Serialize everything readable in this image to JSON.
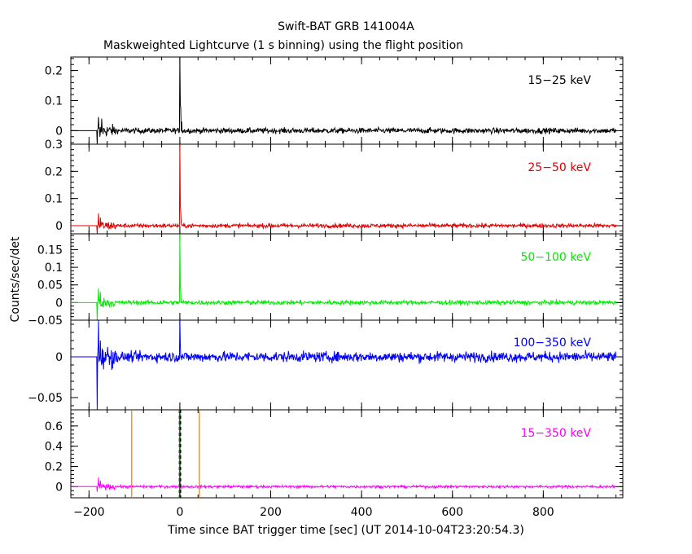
{
  "chart_data": {
    "type": "line",
    "title": "Swift-BAT GRB 141004A",
    "subtitle": "Maskweighted Lightcurve (1 s binning) using the flight position",
    "xlabel": "Time since BAT trigger time [sec] (UT 2014-10-04T23:20:54.3)",
    "ylabel": "Counts/sec/det",
    "xlim": [
      -240,
      975
    ],
    "x_ticks": [
      -200,
      0,
      200,
      400,
      600,
      800
    ],
    "x_tick_labels": [
      "−200",
      "0",
      "200",
      "400",
      "600",
      "800"
    ],
    "data_range": [
      -240,
      960
    ],
    "panels": [
      {
        "name": "15−25 keV",
        "color": "#000000",
        "ylim": [
          -0.045,
          0.245
        ],
        "y_ticks": [
          0,
          0.1,
          0.2
        ],
        "y_tick_labels": [
          "0",
          "0.1",
          "0.2"
        ],
        "noise": 0.0065,
        "data_start": -180,
        "features": [
          {
            "x": -182,
            "y": -0.045
          },
          {
            "x": -179,
            "y": 0.045
          },
          {
            "x": -176,
            "y": -0.02
          },
          {
            "x": -172,
            "y": 0.04
          },
          {
            "x": 0,
            "y": 0.245
          },
          {
            "x": 1,
            "y": 0.085
          },
          {
            "x": 2,
            "y": 0.075
          },
          {
            "x": 4,
            "y": 0.03
          }
        ]
      },
      {
        "name": "25−50 keV",
        "color": "#e00000",
        "ylim": [
          -0.03,
          0.3
        ],
        "y_ticks": [
          0,
          0.1,
          0.2,
          0.3
        ],
        "y_tick_labels": [
          "0",
          "0.1",
          "0.2",
          "0.3"
        ],
        "noise": 0.0055,
        "data_start": -180,
        "features": [
          {
            "x": -182,
            "y": -0.03
          },
          {
            "x": -179,
            "y": 0.045
          },
          {
            "x": -175,
            "y": 0.03
          },
          {
            "x": 0,
            "y": 0.3
          },
          {
            "x": 1,
            "y": 0.075
          },
          {
            "x": 2,
            "y": 0.05
          }
        ]
      },
      {
        "name": "50−100 keV",
        "color": "#00ee00",
        "ylim": [
          -0.05,
          0.195
        ],
        "y_ticks": [
          -0.05,
          0,
          0.05,
          0.1,
          0.15
        ],
        "y_tick_labels": [
          "−0.05",
          "0",
          "0.05",
          "0.1",
          "0.15"
        ],
        "noise": 0.0045,
        "data_start": -180,
        "features": [
          {
            "x": -182,
            "y": -0.05
          },
          {
            "x": -179,
            "y": 0.04
          },
          {
            "x": -175,
            "y": 0.03
          },
          {
            "x": 0,
            "y": 0.195
          },
          {
            "x": 1,
            "y": 0.045
          },
          {
            "x": 2,
            "y": 0.03
          }
        ]
      },
      {
        "name": "100−350 keV",
        "color": "#0000ff",
        "ylim": [
          -0.065,
          0.045
        ],
        "y_ticks": [
          -0.05,
          0
        ],
        "y_tick_labels": [
          "−0.05",
          "0"
        ],
        "noise": 0.0045,
        "data_start": -180,
        "features": [
          {
            "x": -182,
            "y": -0.065
          },
          {
            "x": -179,
            "y": 0.045
          },
          {
            "x": -175,
            "y": 0.02
          },
          {
            "x": 0,
            "y": 0.045
          },
          {
            "x": 1,
            "y": 0.015
          }
        ]
      },
      {
        "name": "15−350 keV",
        "color": "#ff00ff",
        "ylim": [
          -0.11,
          0.76
        ],
        "y_ticks": [
          0,
          0.2,
          0.4,
          0.6
        ],
        "y_tick_labels": [
          "0",
          "0.2",
          "0.4",
          "0.6"
        ],
        "noise": 0.009,
        "data_start": -180,
        "features": [
          {
            "x": -182,
            "y": -0.05
          },
          {
            "x": -179,
            "y": 0.09
          },
          {
            "x": -175,
            "y": 0.06
          },
          {
            "x": 0,
            "y": 0.06
          }
        ],
        "markers": [
          {
            "x": -106,
            "color": "#e08000",
            "style": "solid"
          },
          {
            "x": 43,
            "color": "#e08000",
            "style": "solid"
          },
          {
            "x": 0,
            "color": "#000000",
            "style": "solid"
          },
          {
            "x": -1,
            "color": "#00cc00",
            "style": "dashed"
          },
          {
            "x": 1,
            "color": "#000000",
            "style": "dashed"
          }
        ]
      }
    ]
  }
}
